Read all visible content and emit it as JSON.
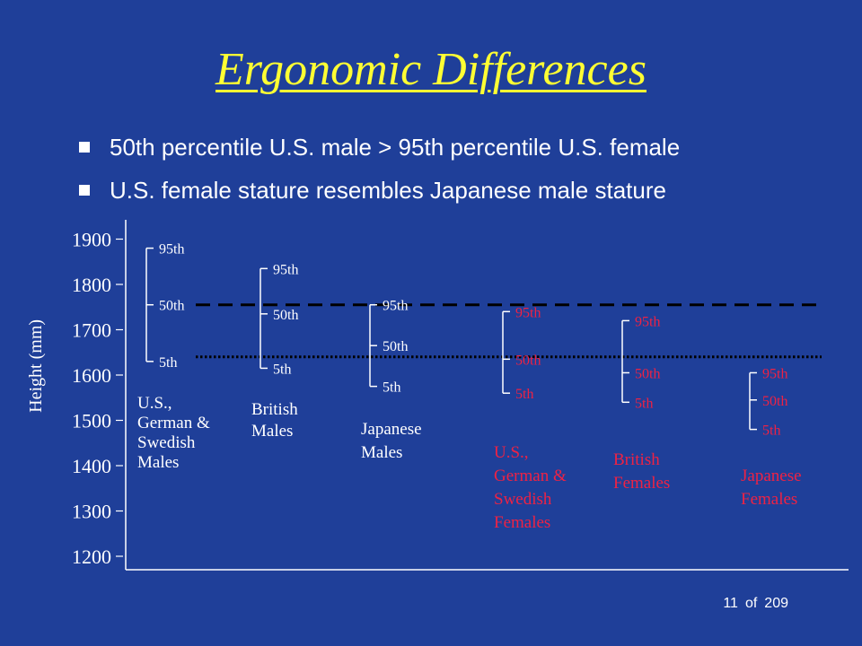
{
  "slide": {
    "title": "Ergonomic Differences",
    "bullets": [
      "50th percentile U.S. male > 95th percentile U.S. female",
      "U.S. female stature resembles Japanese male stature"
    ],
    "page": {
      "current": "11",
      "of": "of",
      "total": "209"
    }
  },
  "colors": {
    "background": "#1f3f99",
    "title": "#ffff33",
    "text": "#ffffff",
    "female": "#ee2244"
  },
  "chart_data": {
    "type": "range",
    "ylabel": "Height (mm)",
    "yticks": [
      1200,
      1300,
      1400,
      1500,
      1600,
      1700,
      1800,
      1900
    ],
    "ylim": [
      1200,
      1930
    ],
    "percentile_labels": [
      "95th",
      "50th",
      "5th"
    ],
    "groups": [
      {
        "label_lines": [
          "U.S.,",
          "German &",
          "Swedish",
          "Males"
        ],
        "sex": "male",
        "p95": 1880,
        "p50": 1755,
        "p5": 1630
      },
      {
        "label_lines": [
          "British",
          "Males"
        ],
        "sex": "male",
        "p95": 1835,
        "p50": 1735,
        "p5": 1615
      },
      {
        "label_lines": [
          "Japanese",
          "Males"
        ],
        "sex": "male",
        "p95": 1755,
        "p50": 1665,
        "p5": 1575
      },
      {
        "label_lines": [
          "U.S.,",
          "German &",
          "Swedish",
          "Females"
        ],
        "sex": "female",
        "p95": 1740,
        "p50": 1635,
        "p5": 1560
      },
      {
        "label_lines": [
          "British",
          "Females"
        ],
        "sex": "female",
        "p95": 1720,
        "p50": 1605,
        "p5": 1540
      },
      {
        "label_lines": [
          "Japanese",
          "Females"
        ],
        "sex": "female",
        "p95": 1605,
        "p50": 1545,
        "p5": 1480
      }
    ],
    "reference_lines": [
      {
        "value": 1755,
        "style": "dashed"
      },
      {
        "value": 1640,
        "style": "dotted"
      }
    ]
  }
}
